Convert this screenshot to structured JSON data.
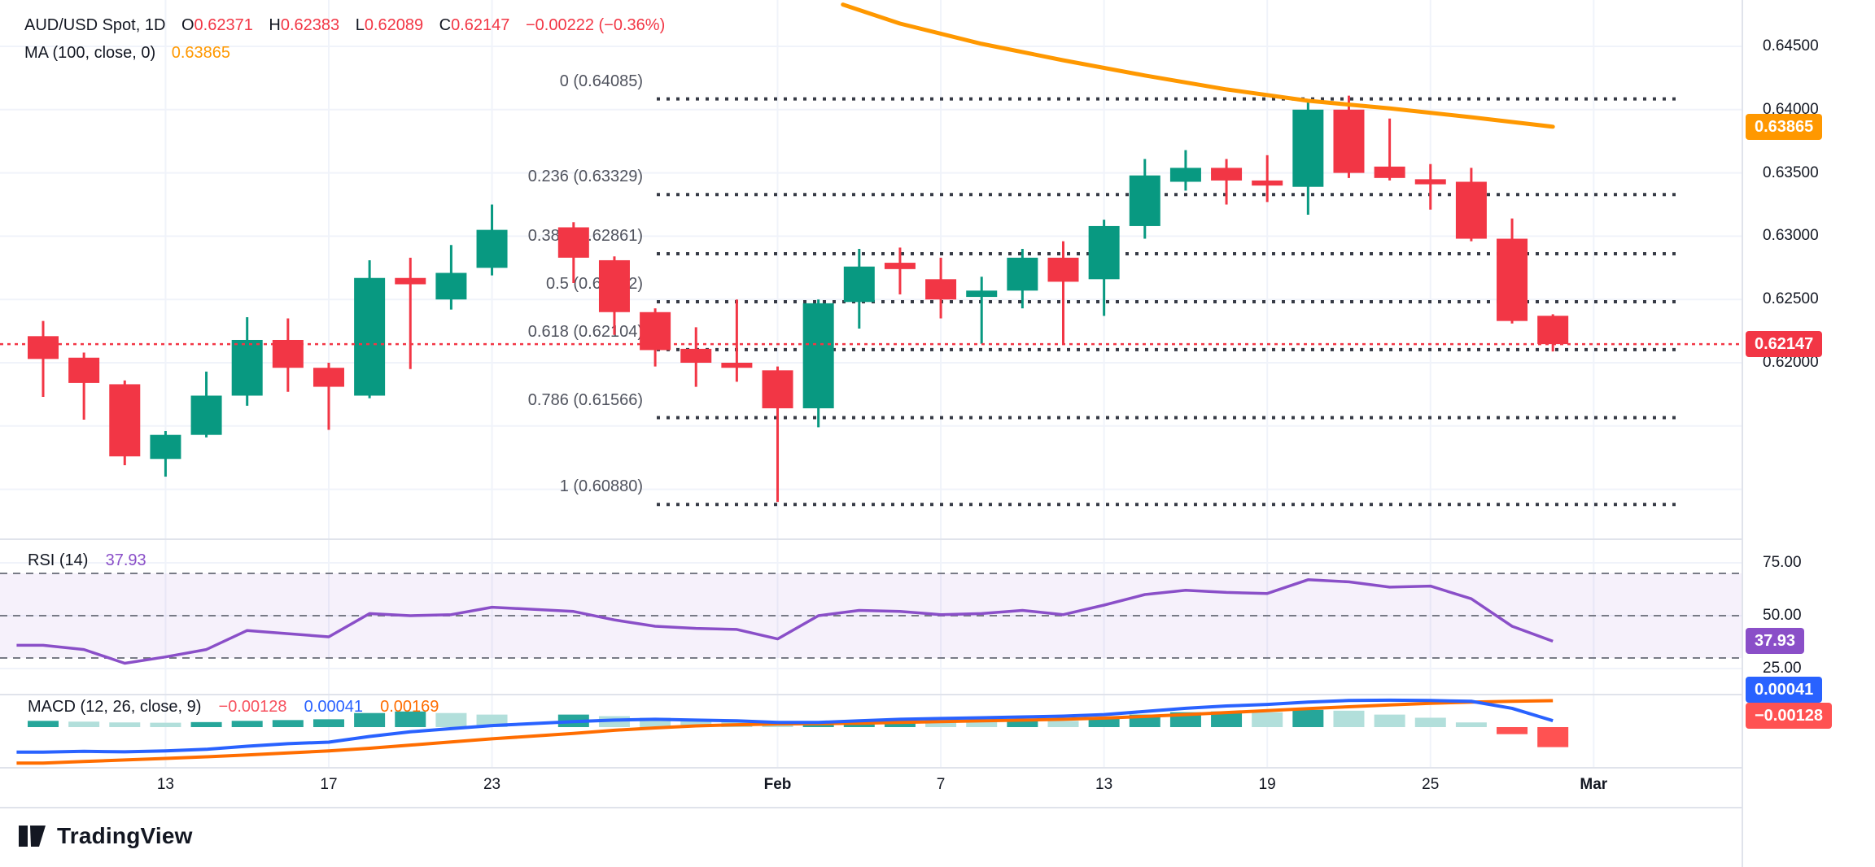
{
  "header": {
    "symbol_line": {
      "symbol": "AUD/USD Spot, 1D",
      "o_label": "O",
      "o": "0.62371",
      "h_label": "H",
      "h": "0.62383",
      "l_label": "L",
      "l": "0.62089",
      "c_label": "C",
      "c": "0.62147",
      "change": "−0.00222 (−0.36%)"
    },
    "ma_line": {
      "label": "MA (100, close, 0)",
      "value": "0.63865"
    }
  },
  "rsi_pane": {
    "label": "RSI (14)",
    "value": "37.93"
  },
  "macd_pane": {
    "label": "MACD (12, 26, close, 9)",
    "hist_value": "−0.00128",
    "macd_value": "0.00041",
    "signal_value": "0.00169"
  },
  "logo": {
    "text": "TradingView"
  },
  "colors": {
    "up": "#089981",
    "down": "#f23645",
    "ma": "#ff9800",
    "macd_line": "#2962ff",
    "signal_line": "#ff6d00",
    "hist_up": "#26a69a",
    "hist_up_fade": "#b2dfdb",
    "hist_down": "#ff5252",
    "hist_down_fade": "#ffcdd2",
    "rsi": "#8a4fc8",
    "price_line": "#f23645",
    "grid": "#f0f3fa",
    "separator": "#e0e3eb",
    "fib_line": "#363a45",
    "dashed": "#787b86",
    "text": "#131722"
  },
  "chart_data": {
    "type": "candlestick",
    "title": "AUD/USD Spot, 1D",
    "last_ohlc": {
      "open": 0.62371,
      "high": 0.62383,
      "low": 0.62089,
      "close": 0.62147,
      "change": -0.00222,
      "change_pct": -0.36
    },
    "price_axis_labels": [
      "0.64500",
      "0.64000",
      "0.63500",
      "0.63000",
      "0.62500",
      "0.62000"
    ],
    "price_grid": [
      0.645,
      0.64,
      0.635,
      0.63,
      0.625,
      0.62,
      0.615,
      0.61
    ],
    "ylim": [
      0.606,
      0.6487
    ],
    "time_axis": [
      {
        "label": "13",
        "bar": 3,
        "bold": false
      },
      {
        "label": "17",
        "bar": 7,
        "bold": false
      },
      {
        "label": "23",
        "bar": 11,
        "bold": false
      },
      {
        "label": "Feb",
        "bar": 18,
        "bold": true
      },
      {
        "label": "7",
        "bar": 22,
        "bold": false
      },
      {
        "label": "13",
        "bar": 26,
        "bold": false
      },
      {
        "label": "19",
        "bar": 30,
        "bold": false
      },
      {
        "label": "25",
        "bar": 34,
        "bold": false
      },
      {
        "label": "Mar",
        "bar": 38,
        "bold": true
      }
    ],
    "candles": [
      {
        "i": 0,
        "o": 0.6221,
        "h": 0.6233,
        "l": 0.6173,
        "c": 0.6203
      },
      {
        "i": 1,
        "o": 0.6204,
        "h": 0.6208,
        "l": 0.6155,
        "c": 0.6184
      },
      {
        "i": 2,
        "o": 0.6183,
        "h": 0.6186,
        "l": 0.6119,
        "c": 0.6126
      },
      {
        "i": 3,
        "o": 0.6124,
        "h": 0.6146,
        "l": 0.611,
        "c": 0.6143
      },
      {
        "i": 4,
        "o": 0.6143,
        "h": 0.6193,
        "l": 0.6141,
        "c": 0.6174
      },
      {
        "i": 5,
        "o": 0.6174,
        "h": 0.6236,
        "l": 0.6166,
        "c": 0.6218
      },
      {
        "i": 6,
        "o": 0.6218,
        "h": 0.6235,
        "l": 0.6177,
        "c": 0.6196
      },
      {
        "i": 7,
        "o": 0.6196,
        "h": 0.62,
        "l": 0.6147,
        "c": 0.6181
      },
      {
        "i": 8,
        "o": 0.6174,
        "h": 0.6281,
        "l": 0.6172,
        "c": 0.6267
      },
      {
        "i": 9,
        "o": 0.6267,
        "h": 0.6283,
        "l": 0.6195,
        "c": 0.6262
      },
      {
        "i": 10,
        "o": 0.625,
        "h": 0.6293,
        "l": 0.6242,
        "c": 0.6271
      },
      {
        "i": 11,
        "o": 0.6275,
        "h": 0.6325,
        "l": 0.6269,
        "c": 0.6305
      },
      {
        "i": 13,
        "o": 0.6307,
        "h": 0.6311,
        "l": 0.6263,
        "c": 0.6283
      },
      {
        "i": 14,
        "o": 0.6281,
        "h": 0.6284,
        "l": 0.6222,
        "c": 0.624
      },
      {
        "i": 15,
        "o": 0.624,
        "h": 0.6243,
        "l": 0.6197,
        "c": 0.621
      },
      {
        "i": 16,
        "o": 0.6211,
        "h": 0.6228,
        "l": 0.6181,
        "c": 0.62
      },
      {
        "i": 17,
        "o": 0.62,
        "h": 0.625,
        "l": 0.6185,
        "c": 0.6196
      },
      {
        "i": 18,
        "o": 0.6194,
        "h": 0.6197,
        "l": 0.609,
        "c": 0.6164
      },
      {
        "i": 19,
        "o": 0.6164,
        "h": 0.625,
        "l": 0.6149,
        "c": 0.6247
      },
      {
        "i": 20,
        "o": 0.6248,
        "h": 0.629,
        "l": 0.6227,
        "c": 0.6276
      },
      {
        "i": 21,
        "o": 0.6279,
        "h": 0.6291,
        "l": 0.6254,
        "c": 0.6274
      },
      {
        "i": 22,
        "o": 0.6266,
        "h": 0.6283,
        "l": 0.6235,
        "c": 0.625
      },
      {
        "i": 23,
        "o": 0.6252,
        "h": 0.6268,
        "l": 0.6215,
        "c": 0.6257
      },
      {
        "i": 24,
        "o": 0.6257,
        "h": 0.629,
        "l": 0.6243,
        "c": 0.6283
      },
      {
        "i": 25,
        "o": 0.6283,
        "h": 0.6296,
        "l": 0.6214,
        "c": 0.6264
      },
      {
        "i": 26,
        "o": 0.6266,
        "h": 0.6313,
        "l": 0.6237,
        "c": 0.6308
      },
      {
        "i": 27,
        "o": 0.6308,
        "h": 0.6361,
        "l": 0.6298,
        "c": 0.6348
      },
      {
        "i": 28,
        "o": 0.6343,
        "h": 0.6368,
        "l": 0.6336,
        "c": 0.6354
      },
      {
        "i": 29,
        "o": 0.6354,
        "h": 0.6361,
        "l": 0.6325,
        "c": 0.6344
      },
      {
        "i": 30,
        "o": 0.6344,
        "h": 0.6364,
        "l": 0.6327,
        "c": 0.634
      },
      {
        "i": 31,
        "o": 0.6339,
        "h": 0.6406,
        "l": 0.6317,
        "c": 0.64
      },
      {
        "i": 32,
        "o": 0.64,
        "h": 0.6411,
        "l": 0.6346,
        "c": 0.635
      },
      {
        "i": 33,
        "o": 0.6355,
        "h": 0.6393,
        "l": 0.6344,
        "c": 0.6346
      },
      {
        "i": 34,
        "o": 0.6345,
        "h": 0.6357,
        "l": 0.6321,
        "c": 0.6341
      },
      {
        "i": 35,
        "o": 0.6343,
        "h": 0.6354,
        "l": 0.6296,
        "c": 0.6298
      },
      {
        "i": 36,
        "o": 0.6298,
        "h": 0.6314,
        "l": 0.6231,
        "c": 0.6233
      },
      {
        "i": 37,
        "o": 0.62371,
        "h": 0.62383,
        "l": 0.62089,
        "c": 0.62147
      }
    ],
    "ma100": {
      "label": "MA (100, close, 0)",
      "value": 0.63865,
      "points": [
        [
          19.6,
          0.6483
        ],
        [
          21,
          0.6468
        ],
        [
          23,
          0.6452
        ],
        [
          25,
          0.6439
        ],
        [
          27,
          0.6427
        ],
        [
          29,
          0.6416
        ],
        [
          31,
          0.6407
        ],
        [
          33,
          0.6401
        ],
        [
          35,
          0.6394
        ],
        [
          37,
          0.63865
        ]
      ]
    },
    "fib_levels": [
      {
        "label": "0 (0.64085)",
        "price": 0.64085
      },
      {
        "label": "0.236 (0.63329)",
        "price": 0.63329
      },
      {
        "label": "0.382 (0.62861)",
        "price": 0.62861
      },
      {
        "label": "0.5 (0.62482)",
        "price": 0.62482
      },
      {
        "label": "0.618 (0.62104)",
        "price": 0.62104
      },
      {
        "label": "0.786 (0.61566)",
        "price": 0.61566
      },
      {
        "label": "1 (0.60880)",
        "price": 0.6088
      }
    ],
    "price_line_value": 0.62147,
    "rsi": {
      "label": "RSI (14)",
      "last": 37.93,
      "dashed_levels": [
        70,
        50,
        30
      ],
      "axis_labels": [
        {
          "text": "75.00",
          "v": 75
        },
        {
          "text": "50.00",
          "v": 50
        },
        {
          "text": "25.00",
          "v": 25
        }
      ],
      "values": [
        36,
        34,
        27.5,
        30.5,
        34,
        43,
        41.5,
        40,
        51,
        50,
        50.5,
        54,
        null,
        52,
        48,
        45,
        44,
        43.5,
        39,
        50,
        52.5,
        52,
        50.5,
        51,
        52.5,
        50.5,
        55,
        60,
        62,
        61,
        60.5,
        67,
        66,
        63.5,
        64,
        58,
        45,
        37.93
      ]
    },
    "macd": {
      "label": "MACD (12, 26, close, 9)",
      "last_hist": -0.00128,
      "last_macd": 0.00041,
      "last_signal": 0.00169,
      "macd": [
        -0.0016,
        -0.00155,
        -0.00158,
        -0.00152,
        -0.00142,
        -0.00122,
        -0.00106,
        -0.00096,
        -0.0006,
        -0.0003,
        -0.0001,
        0.0001,
        null,
        0.00035,
        0.00045,
        0.0005,
        0.00045,
        0.0004,
        0.0003,
        0.0003,
        0.0004,
        0.0005,
        0.00055,
        0.0006,
        0.00065,
        0.0007,
        0.0008,
        0.001,
        0.0012,
        0.00135,
        0.00145,
        0.0016,
        0.0017,
        0.00172,
        0.0017,
        0.00165,
        0.0012,
        0.00041
      ],
      "signal": [
        -0.0023,
        -0.0022,
        -0.0021,
        -0.002,
        -0.0019,
        -0.00178,
        -0.00165,
        -0.00152,
        -0.00135,
        -0.00115,
        -0.00095,
        -0.00075,
        null,
        -0.0004,
        -0.0002,
        -5e-05,
        8e-05,
        0.00015,
        0.0002,
        0.00022,
        0.00025,
        0.0003,
        0.00035,
        0.0004,
        0.00045,
        0.0005,
        0.00058,
        0.00068,
        0.0008,
        0.00093,
        0.00105,
        0.00118,
        0.0013,
        0.00142,
        0.00152,
        0.0016,
        0.00165,
        0.00169
      ],
      "hist": [
        0.0004,
        0.00035,
        0.0003,
        0.00028,
        0.00032,
        0.0004,
        0.00045,
        0.0005,
        0.0009,
        0.001,
        0.0009,
        0.0008,
        null,
        0.0008,
        0.0007,
        0.0006,
        0.0005,
        0.00045,
        0.0003,
        0.00035,
        0.00045,
        0.0005,
        0.00045,
        0.0004,
        0.00045,
        0.0004,
        0.00055,
        0.0008,
        0.00095,
        0.001,
        0.00095,
        0.0011,
        0.00105,
        0.0008,
        0.0006,
        0.0003,
        -0.00045,
        -0.00128
      ]
    },
    "badges": [
      {
        "text": "0.63865",
        "color": "#ff9800",
        "pane": "price",
        "at": 0.63865
      },
      {
        "text": "0.62147",
        "color": "#f23645",
        "pane": "price",
        "at": 0.62147
      },
      {
        "text": "37.93",
        "color": "#8a4fc8",
        "pane": "rsi",
        "at": 37.93
      },
      {
        "text": "0.00041",
        "color": "#2962ff",
        "pane": "y",
        "at": 848
      },
      {
        "text": "−0.00128",
        "color": "#ff5252",
        "pane": "y",
        "at": 880
      }
    ]
  }
}
